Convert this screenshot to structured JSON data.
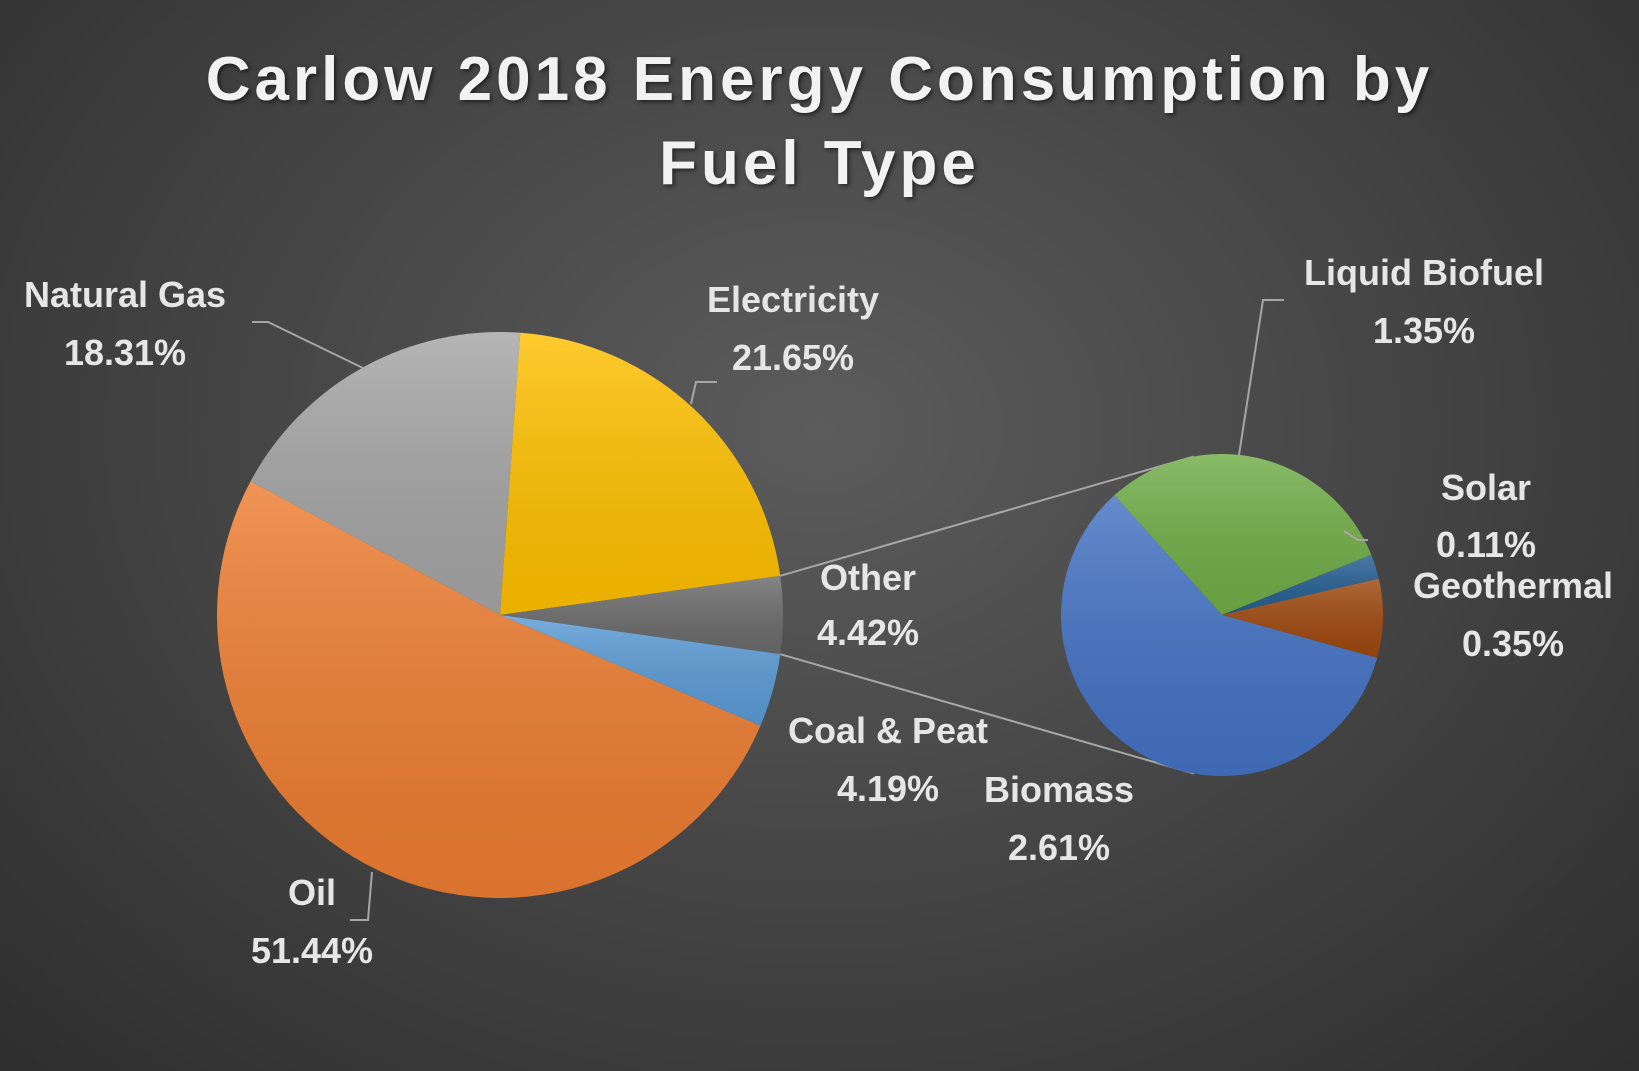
{
  "chart_data": {
    "type": "pie",
    "subtype": "pie-of-pie",
    "title_line1": "Carlow 2018 Energy Consumption by",
    "title_line2": "Fuel Type",
    "main_pie": [
      {
        "name": "Oil",
        "value": 51.44,
        "label": "51.44%",
        "color": "#ED7D31"
      },
      {
        "name": "Natural Gas",
        "value": 18.31,
        "label": "18.31%",
        "color": "#A5A5A5"
      },
      {
        "name": "Electricity",
        "value": 21.65,
        "label": "21.65%",
        "color": "#FFC000"
      },
      {
        "name": "Other",
        "value": 4.42,
        "label": "4.42%",
        "color": "#6B6B6B"
      },
      {
        "name": "Coal & Peat",
        "value": 4.19,
        "label": "4.19%",
        "color": "#5B9BD5"
      }
    ],
    "secondary_pie": [
      {
        "name": "Biomass",
        "value": 2.61,
        "label": "2.61%",
        "color": "#4472C4"
      },
      {
        "name": "Liquid Biofuel",
        "value": 1.35,
        "label": "1.35%",
        "color": "#70AD47"
      },
      {
        "name": "Solar",
        "value": 0.11,
        "label": "0.11%",
        "color": "#255E91"
      },
      {
        "name": "Geothermal",
        "value": 0.35,
        "label": "0.35%",
        "color": "#9E480E"
      }
    ]
  }
}
